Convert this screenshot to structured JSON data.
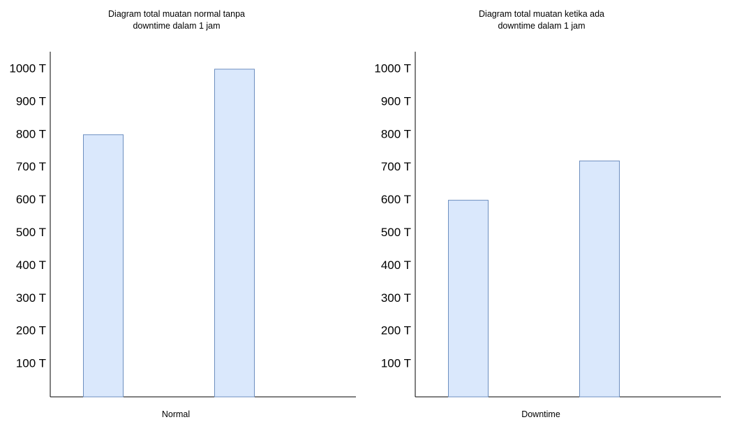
{
  "chart_data": [
    {
      "type": "bar",
      "title": "Diagram total muatan normal tanpa\ndowntime dalam 1 jam",
      "xlabel": "Normal",
      "ylabel": "",
      "categories": [
        "",
        ""
      ],
      "values": [
        800,
        1000
      ],
      "yticks": [
        100,
        200,
        300,
        400,
        500,
        600,
        700,
        800,
        900,
        1000
      ],
      "tick_labels": [
        "100 T",
        "200 T",
        "300 T",
        "400 T",
        "500 T",
        "600 T",
        "700 T",
        "800 T",
        "900 T",
        "1000 T"
      ],
      "ylim": [
        0,
        1100
      ],
      "grid": false,
      "bar_fill": "#dae8fc",
      "bar_stroke": "#6c8ebf",
      "axis_color": "#000000"
    },
    {
      "type": "bar",
      "title": "Diagram total muatan ketika ada\ndowntime dalam 1 jam",
      "xlabel": "Downtime",
      "ylabel": "",
      "categories": [
        "",
        ""
      ],
      "values": [
        600,
        720
      ],
      "yticks": [
        100,
        200,
        300,
        400,
        500,
        600,
        700,
        800,
        900,
        1000
      ],
      "tick_labels": [
        "100 T",
        "200 T",
        "300 T",
        "400 T",
        "500 T",
        "600 T",
        "700 T",
        "800 T",
        "900 T",
        "1000 T"
      ],
      "ylim": [
        0,
        1100
      ],
      "grid": false,
      "bar_fill": "#dae8fc",
      "bar_stroke": "#6c8ebf",
      "axis_color": "#000000"
    }
  ]
}
